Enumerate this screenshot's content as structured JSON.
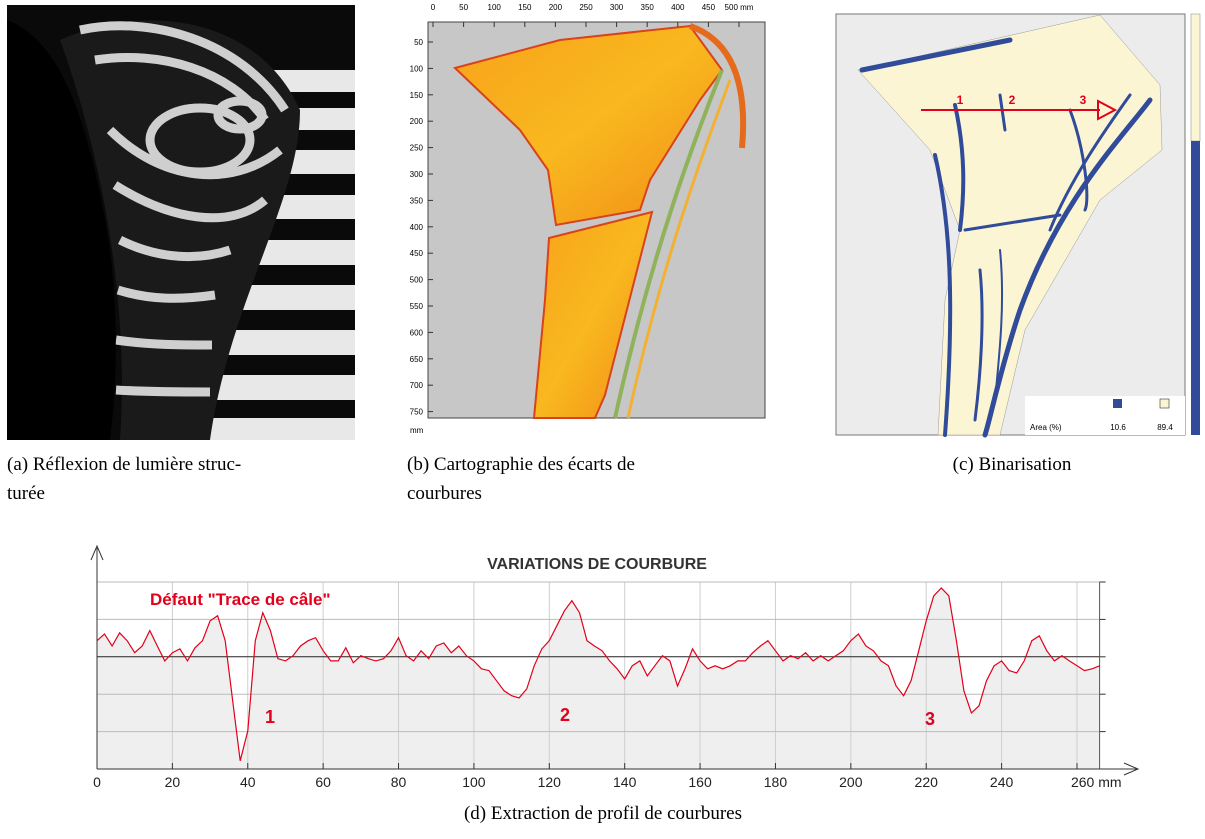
{
  "figures": {
    "a": {
      "caption": [
        "(a) Réflexion de lumière struc-",
        "turée"
      ]
    },
    "b": {
      "caption": [
        "(b) Cartographie des écarts de",
        "courbures"
      ],
      "x_ticks": [
        0,
        50,
        100,
        150,
        200,
        250,
        300,
        350,
        400,
        450,
        "500 mm"
      ],
      "y_ticks": [
        50,
        100,
        150,
        200,
        250,
        300,
        350,
        400,
        450,
        500,
        550,
        600,
        650,
        700,
        750
      ],
      "y_unit": "mm"
    },
    "c": {
      "caption": "(c) Binarisation",
      "markers": [
        "1",
        "2",
        "3"
      ],
      "area_label": "Area (%)",
      "area_values": [
        10.6,
        89.4
      ]
    }
  },
  "chart_data": {
    "type": "line",
    "title": "VARIATIONS DE COURBURE",
    "annotation": "Défaut \"Trace de câle\"",
    "peak_labels": [
      "1",
      "2",
      "3"
    ],
    "caption": "(d) Extraction de profil de courbures",
    "x": [
      0,
      2,
      4,
      6,
      8,
      10,
      12,
      14,
      16,
      18,
      20,
      22,
      24,
      26,
      28,
      30,
      32,
      34,
      36,
      38,
      40,
      42,
      44,
      46,
      48,
      50,
      52,
      54,
      56,
      58,
      60,
      62,
      64,
      66,
      68,
      70,
      72,
      74,
      76,
      78,
      80,
      82,
      84,
      86,
      88,
      90,
      92,
      94,
      96,
      98,
      100,
      102,
      104,
      106,
      108,
      110,
      112,
      114,
      116,
      118,
      120,
      122,
      124,
      126,
      128,
      130,
      132,
      134,
      136,
      138,
      140,
      142,
      144,
      146,
      148,
      150,
      152,
      154,
      156,
      158,
      160,
      162,
      164,
      166,
      168,
      170,
      172,
      174,
      176,
      178,
      180,
      182,
      184,
      186,
      188,
      190,
      192,
      194,
      196,
      198,
      200,
      202,
      204,
      206,
      208,
      210,
      212,
      214,
      216,
      218,
      220,
      222,
      224,
      226,
      228,
      230,
      232,
      234,
      236,
      238,
      240,
      242,
      244,
      246,
      248,
      250,
      252,
      254,
      256,
      258,
      260,
      262,
      264,
      266
    ],
    "values": [
      0.43,
      0.61,
      0.29,
      0.64,
      0.43,
      0.11,
      0.29,
      0.7,
      0.29,
      -0.11,
      0.11,
      0.21,
      -0.11,
      0.24,
      0.43,
      0.96,
      1.1,
      0.43,
      -1.18,
      -2.78,
      -1.98,
      0.43,
      1.18,
      0.7,
      -0.05,
      -0.11,
      0.03,
      0.29,
      0.43,
      0.51,
      0.16,
      -0.11,
      -0.11,
      0.24,
      -0.16,
      0.03,
      -0.05,
      -0.11,
      -0.05,
      0.16,
      0.51,
      0.03,
      -0.11,
      0.16,
      -0.05,
      0.29,
      0.37,
      0.11,
      0.29,
      0.03,
      -0.11,
      -0.32,
      -0.37,
      -0.64,
      -0.91,
      -1.04,
      -1.1,
      -0.86,
      -0.24,
      0.21,
      0.43,
      0.83,
      1.23,
      1.5,
      1.18,
      0.43,
      0.29,
      0.16,
      -0.11,
      -0.32,
      -0.59,
      -0.24,
      -0.11,
      -0.51,
      -0.24,
      0.03,
      -0.11,
      -0.78,
      -0.32,
      0.21,
      -0.11,
      -0.32,
      -0.24,
      -0.32,
      -0.24,
      -0.11,
      -0.11,
      0.11,
      0.29,
      0.43,
      0.16,
      -0.11,
      0.03,
      -0.05,
      0.11,
      -0.11,
      0.03,
      -0.11,
      0.03,
      0.16,
      0.43,
      0.61,
      0.29,
      0.16,
      -0.11,
      -0.24,
      -0.78,
      -1.04,
      -0.64,
      0.16,
      0.96,
      1.63,
      1.84,
      1.63,
      0.43,
      -0.91,
      -1.5,
      -1.31,
      -0.64,
      -0.24,
      -0.11,
      -0.37,
      -0.43,
      -0.11,
      0.43,
      0.56,
      0.16,
      -0.11,
      0.03,
      -0.11,
      -0.24,
      -0.37,
      -0.32,
      -0.24
    ],
    "color": "#e2001a",
    "fill": "#efefef",
    "xlim": [
      0,
      266
    ],
    "xticks": [
      0,
      20,
      40,
      60,
      80,
      100,
      120,
      140,
      160,
      180,
      200,
      220,
      240,
      {
        "value": 260,
        "label": "260 mm"
      }
    ],
    "ylim": [
      -3,
      2
    ],
    "yticks": [
      -3,
      -2,
      -1,
      0,
      1,
      2
    ],
    "grid": true
  }
}
